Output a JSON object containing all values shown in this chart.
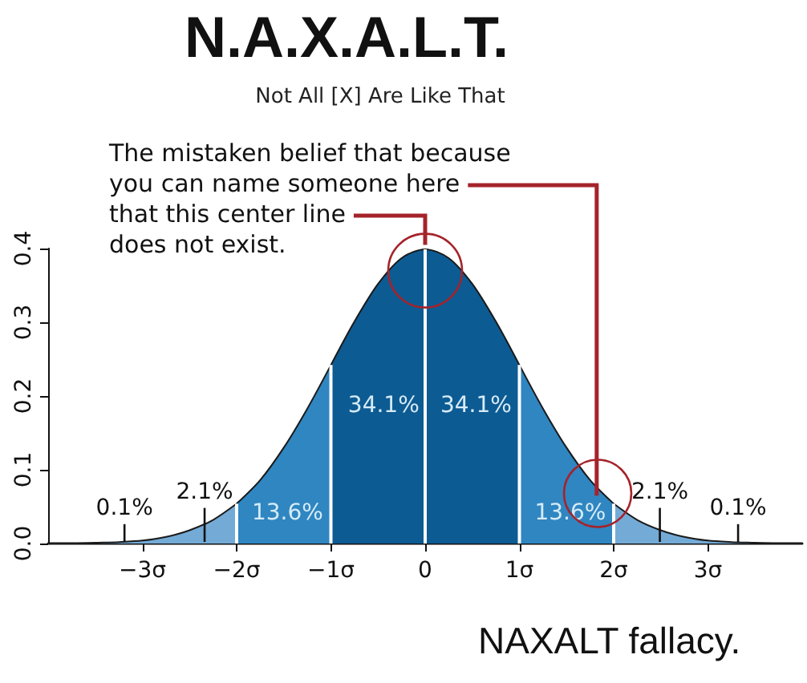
{
  "chart_data": {
    "type": "area",
    "title": "N.A.X.A.L.T.",
    "subtitle": "Not All [X] Are Like That",
    "series": [
      {
        "color": "#74aad6",
        "x": [
          -4,
          -3.75,
          -3.5,
          -3.25,
          -3,
          -2.75,
          -2.5,
          -2.25,
          -2
        ],
        "values": [
          0.0,
          0.0,
          0.001,
          0.002,
          0.004,
          0.009,
          0.018,
          0.032,
          0.054
        ]
      },
      {
        "color": "#2f86c1",
        "x": [
          -2,
          -1.75,
          -1.5,
          -1.25,
          -1
        ],
        "values": [
          0.054,
          0.086,
          0.13,
          0.183,
          0.242
        ]
      },
      {
        "color": "#0d5b93",
        "x": [
          -1,
          -0.75,
          -0.5,
          -0.25,
          0,
          0.25,
          0.5,
          0.75,
          1
        ],
        "values": [
          0.242,
          0.301,
          0.352,
          0.387,
          0.399,
          0.387,
          0.352,
          0.301,
          0.242
        ]
      },
      {
        "color": "#2f86c1",
        "x": [
          1,
          1.25,
          1.5,
          1.75,
          2
        ],
        "values": [
          0.242,
          0.183,
          0.13,
          0.086,
          0.054
        ]
      },
      {
        "color": "#74aad6",
        "x": [
          2,
          2.25,
          2.5,
          2.75,
          3,
          3.25,
          3.5,
          3.75,
          4
        ],
        "values": [
          0.054,
          0.032,
          0.018,
          0.009,
          0.004,
          0.002,
          0.001,
          0.0,
          0.0
        ]
      }
    ],
    "xlim": [
      -4,
      4
    ],
    "xticks": [
      {
        "value": -3,
        "label": "−3σ"
      },
      {
        "value": -2,
        "label": "−2σ"
      },
      {
        "value": -1,
        "label": "−1σ"
      },
      0,
      {
        "value": 1,
        "label": "1σ"
      },
      {
        "value": 2,
        "label": "2σ"
      },
      {
        "value": 3,
        "label": "3σ"
      }
    ],
    "ylim": [
      0,
      0.4
    ],
    "yticks": [
      {
        "value": 0,
        "label": "0.0"
      },
      0.1,
      0.2,
      0.3,
      0.4
    ],
    "ref_lines": [
      {
        "axis": "x",
        "value": -2,
        "color": "#ffffff"
      },
      {
        "axis": "x",
        "value": -1,
        "color": "#ffffff"
      },
      {
        "axis": "x",
        "value": 0,
        "color": "#ffffff"
      },
      {
        "axis": "x",
        "value": 1,
        "color": "#ffffff"
      },
      {
        "axis": "x",
        "value": 2,
        "color": "#ffffff"
      }
    ],
    "annotations": [
      "The mistaken belief that because\nyou can name someone here\nthat this center line\ndoes not exist.",
      "NAXALT fallacy.",
      "0.1%",
      "2.1%",
      "13.6%",
      "34.1%",
      "34.1%",
      "13.6%",
      "2.1%",
      "0.1%"
    ],
    "grid": false
  }
}
